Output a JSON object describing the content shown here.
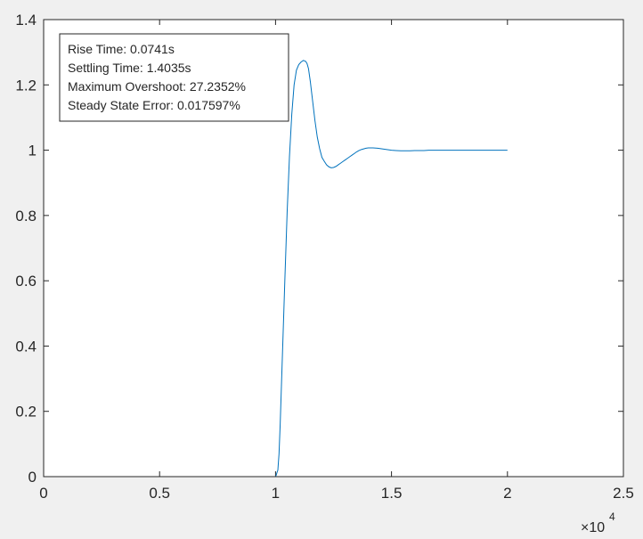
{
  "chart_data": {
    "type": "line",
    "title": "",
    "xlabel": "",
    "ylabel": "",
    "xlim": [
      0,
      25000
    ],
    "ylim": [
      0,
      1.4
    ],
    "x_ticks": [
      0,
      5000,
      10000,
      15000,
      20000,
      25000
    ],
    "x_tick_labels": [
      "0",
      "0.5",
      "1",
      "1.5",
      "2",
      "2.5"
    ],
    "y_ticks": [
      0,
      0.2,
      0.4,
      0.6,
      0.8,
      1.0,
      1.2,
      1.4
    ],
    "y_tick_labels": [
      "0",
      "0.2",
      "0.4",
      "0.6",
      "0.8",
      "1",
      "1.2",
      "1.4"
    ],
    "x_exponent_label": "×10",
    "x_exponent_power": "4",
    "grid": false,
    "line_color": "#0072bd",
    "series": [
      {
        "x": [
          0,
          9999,
          10000,
          10030,
          10060,
          10100,
          10150,
          10200,
          10300,
          10400,
          10500,
          10600,
          10700,
          10800,
          10900,
          11000,
          11100,
          11200,
          11300,
          11360,
          11420,
          11500,
          11600,
          11700,
          11800,
          11900,
          12000,
          12100,
          12200,
          12300,
          12400,
          12500,
          12600,
          12700,
          12800,
          12900,
          13000,
          13100,
          13200,
          13300,
          13400,
          13500,
          13600,
          13700,
          13800,
          13900,
          14000,
          14200,
          14400,
          14600,
          14800,
          15000,
          15200,
          15400,
          15600,
          15800,
          16000,
          16200,
          16400,
          16600,
          16800,
          17000,
          17500,
          18000,
          18500,
          19000,
          19500,
          20000
        ],
        "y": [
          0,
          0,
          0,
          0.005,
          0.012,
          0.02,
          0.07,
          0.16,
          0.38,
          0.6,
          0.81,
          0.98,
          1.11,
          1.2,
          1.245,
          1.262,
          1.27,
          1.275,
          1.272,
          1.265,
          1.25,
          1.21,
          1.15,
          1.09,
          1.04,
          1.005,
          0.978,
          0.966,
          0.955,
          0.949,
          0.946,
          0.947,
          0.95,
          0.955,
          0.96,
          0.965,
          0.97,
          0.975,
          0.98,
          0.985,
          0.99,
          0.995,
          0.999,
          1.002,
          1.004,
          1.006,
          1.007,
          1.007,
          1.006,
          1.004,
          1.002,
          1.0,
          0.999,
          0.998,
          0.998,
          0.998,
          0.999,
          0.999,
          0.999,
          1.0,
          1.0,
          1.0,
          1.0,
          1.0,
          1.0,
          1.0,
          1.0,
          1.0
        ]
      }
    ],
    "annotations": [
      "Rise Time: 0.0741s",
      "Settling Time: 1.4035s",
      "Maximum Overshoot: 27.2352%",
      "Steady State Error: 0.017597%"
    ]
  }
}
